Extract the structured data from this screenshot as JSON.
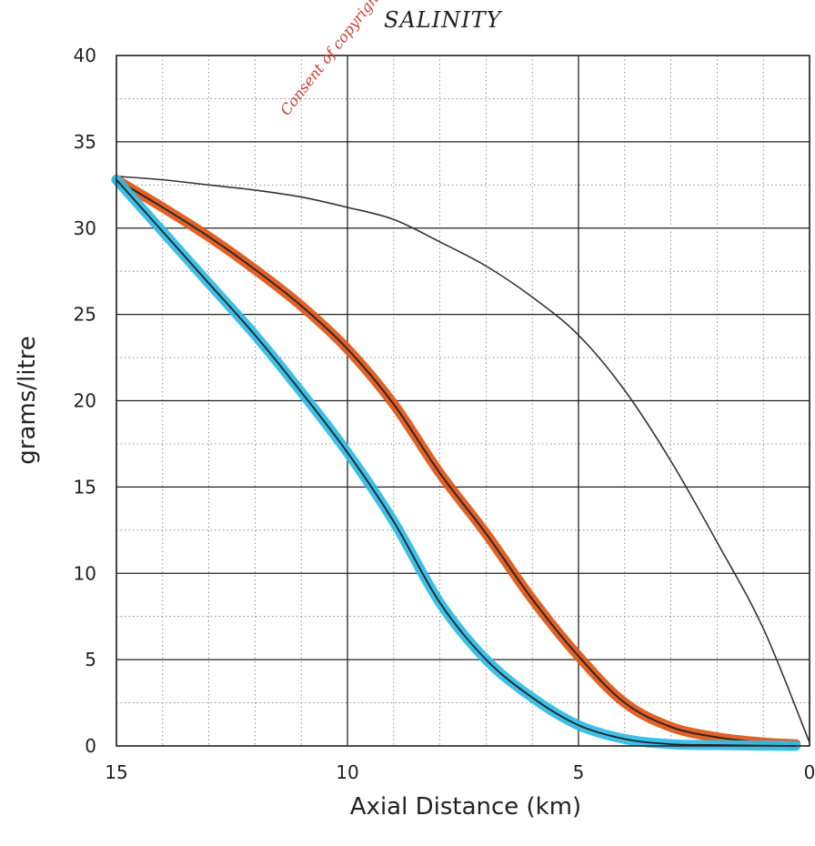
{
  "chart_data": {
    "type": "line",
    "title": "SALINITY",
    "watermark": "Consent of copyright",
    "xlabel": "Axial Distance (km)",
    "ylabel": "grams/litre",
    "xlim": [
      15,
      0
    ],
    "ylim": [
      0,
      40
    ],
    "x_ticks": [
      15,
      10,
      5,
      0
    ],
    "y_ticks": [
      0,
      5,
      10,
      15,
      20,
      25,
      30,
      35,
      40
    ],
    "grid": true,
    "series": [
      {
        "style": "thin",
        "color": "#333333",
        "x": [
          15,
          14,
          13,
          12,
          11,
          10,
          9,
          8,
          7,
          6,
          5,
          4,
          3,
          2,
          1,
          0
        ],
        "y": [
          33.0,
          32.8,
          32.5,
          32.2,
          31.8,
          31.2,
          30.5,
          29.2,
          27.8,
          26.0,
          23.8,
          20.6,
          16.5,
          11.8,
          6.8,
          0.2
        ]
      },
      {
        "style": "highlighted",
        "color": "#222222",
        "highlight_color": "#e0581a",
        "x": [
          15,
          14,
          13,
          12,
          11,
          10,
          9,
          8,
          7,
          6,
          5,
          4,
          3,
          2,
          1,
          0.3
        ],
        "y": [
          32.8,
          31.2,
          29.5,
          27.6,
          25.5,
          23.0,
          19.8,
          15.8,
          12.3,
          8.5,
          5.2,
          2.5,
          1.1,
          0.5,
          0.2,
          0.1
        ]
      },
      {
        "style": "highlighted",
        "color": "#222222",
        "highlight_color": "#33bde6",
        "x": [
          15,
          14,
          13,
          12,
          11,
          10,
          9,
          8,
          7,
          6,
          5,
          4,
          3,
          2,
          1,
          0.3
        ],
        "y": [
          32.8,
          29.8,
          26.8,
          23.8,
          20.5,
          17.0,
          13.0,
          8.3,
          5.0,
          2.8,
          1.2,
          0.4,
          0.1,
          0.05,
          0.02,
          0.0
        ]
      }
    ]
  }
}
